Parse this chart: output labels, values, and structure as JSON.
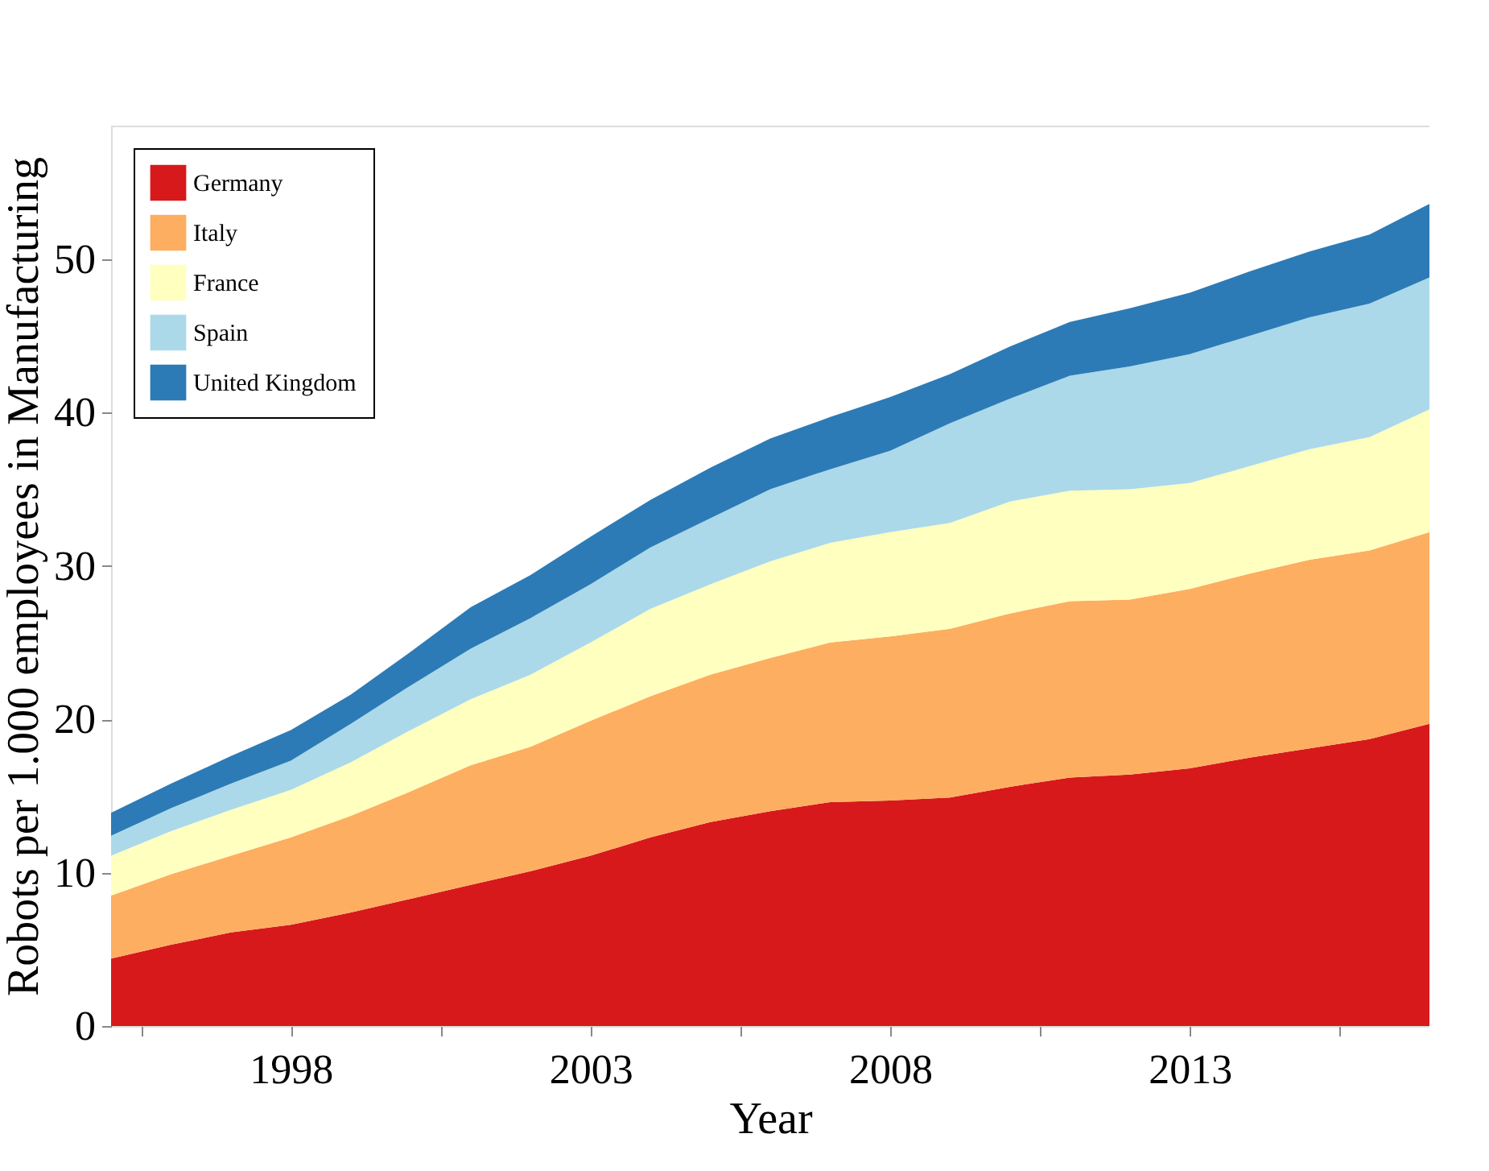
{
  "chart_data": {
    "type": "area",
    "stacked": true,
    "xlabel": "Year",
    "ylabel": "Robots per 1.000 employees in Manufacturing",
    "x": [
      1995,
      1996,
      1997,
      1998,
      1999,
      2000,
      2001,
      2002,
      2003,
      2004,
      2005,
      2006,
      2007,
      2008,
      2009,
      2010,
      2011,
      2012,
      2013,
      2014,
      2015,
      2016,
      2017
    ],
    "series": [
      {
        "name": "Germany",
        "color": "#d7191c",
        "values": [
          4.4,
          5.3,
          6.1,
          6.6,
          7.4,
          8.3,
          9.2,
          10.1,
          11.1,
          12.3,
          13.3,
          14.0,
          14.6,
          14.7,
          14.9,
          15.6,
          16.2,
          16.4,
          16.8,
          17.5,
          18.1,
          18.7,
          19.7
        ]
      },
      {
        "name": "Italy",
        "color": "#fdae61",
        "values": [
          4.1,
          4.6,
          5.0,
          5.7,
          6.3,
          7.0,
          7.8,
          8.1,
          8.8,
          9.2,
          9.6,
          10.0,
          10.4,
          10.7,
          11.0,
          11.3,
          11.5,
          11.4,
          11.7,
          12.0,
          12.3,
          12.3,
          12.5
        ]
      },
      {
        "name": "France",
        "color": "#ffffbf",
        "values": [
          2.6,
          2.8,
          3.0,
          3.1,
          3.5,
          4.0,
          4.3,
          4.7,
          5.1,
          5.7,
          5.9,
          6.3,
          6.5,
          6.8,
          6.9,
          7.3,
          7.2,
          7.2,
          6.9,
          7.0,
          7.2,
          7.4,
          8.0
        ]
      },
      {
        "name": "Spain",
        "color": "#abd9e9",
        "values": [
          1.3,
          1.5,
          1.7,
          1.9,
          2.5,
          2.9,
          3.3,
          3.7,
          3.8,
          4.0,
          4.3,
          4.7,
          4.8,
          5.3,
          6.5,
          6.7,
          7.5,
          8.0,
          8.4,
          8.5,
          8.6,
          8.7,
          8.6
        ]
      },
      {
        "name": "United Kingdom",
        "color": "#2c7bb6",
        "values": [
          1.5,
          1.6,
          1.8,
          2.0,
          1.9,
          2.2,
          2.7,
          2.8,
          3.1,
          3.1,
          3.3,
          3.3,
          3.4,
          3.5,
          3.2,
          3.4,
          3.5,
          3.8,
          4.0,
          4.2,
          4.3,
          4.5,
          4.8
        ]
      }
    ],
    "xlim": [
      1995,
      2017
    ],
    "xticks": [
      {
        "value": 1995.5,
        "label": null
      },
      1998,
      {
        "value": 2000.5,
        "label": null
      },
      2003,
      {
        "value": 2005.5,
        "label": null
      },
      2008,
      {
        "value": 2010.5,
        "label": null
      },
      2013,
      {
        "value": 2015.5,
        "label": null
      }
    ],
    "ylim": [
      0,
      58.7
    ],
    "yticks": [
      0,
      10,
      20,
      30,
      40,
      50
    ],
    "grid": false,
    "legend": "top left"
  }
}
